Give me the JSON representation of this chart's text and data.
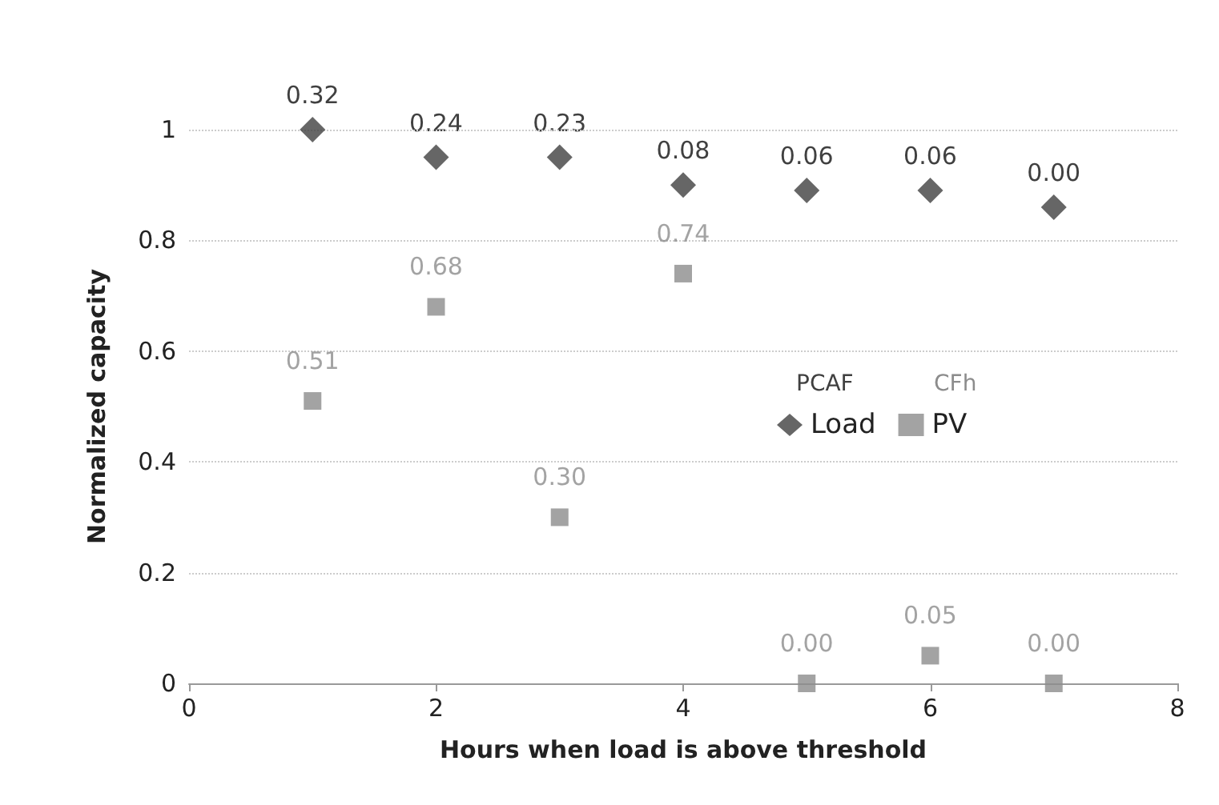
{
  "chart_data": {
    "type": "scatter",
    "xlabel": "Hours when load is above threshold",
    "ylabel": "Normalized capacity",
    "x": [
      1,
      2,
      3,
      4,
      5,
      6,
      7
    ],
    "series": [
      {
        "name": "Load",
        "color": "#404040",
        "marker": "diamond",
        "values": [
          1.0,
          0.95,
          0.95,
          0.9,
          0.89,
          0.89,
          0.86
        ]
      },
      {
        "name": "PV",
        "color": "#8c8c8c",
        "marker": "square",
        "values": [
          0.51,
          0.68,
          0.3,
          0.74,
          0,
          0.05,
          0
        ],
        "value_labels": [
          "0.51",
          "0.68",
          "0.30",
          "0.74",
          "0.00",
          "0.05",
          "0.00"
        ]
      }
    ],
    "annotations": [
      "PCAF",
      "CFh",
      {
        "text": "0.32",
        "x": 1,
        "y": 1.0
      },
      {
        "text": "0.24",
        "x": 2,
        "y": 0.95
      },
      {
        "text": "0.23",
        "x": 3,
        "y": 0.95
      },
      {
        "text": "0.08",
        "x": 4,
        "y": 0.9
      },
      {
        "text": "0.06",
        "x": 5,
        "y": 0.89
      },
      {
        "text": "0.06",
        "x": 6,
        "y": 0.89
      },
      {
        "text": "0.00",
        "x": 7,
        "y": 0.86
      }
    ],
    "xlim": [
      0,
      8
    ],
    "xticks": [
      0,
      2,
      4,
      6,
      8
    ],
    "ylim": [
      0,
      1
    ],
    "yticks": [
      0,
      0.2,
      0.4,
      0.6,
      0.8,
      1
    ],
    "grid": "y",
    "legend": "right"
  }
}
